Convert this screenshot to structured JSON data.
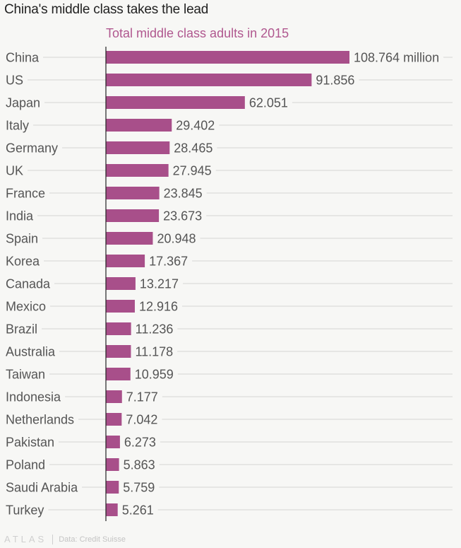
{
  "header": {
    "title": "China's middle class takes the lead",
    "subtitle": "Total middle class adults in 2015"
  },
  "footer": {
    "logo": "ATLAS",
    "source": "Data: Credit Suisse"
  },
  "colors": {
    "bar": "#a84f8a",
    "label": "#555555",
    "grid": "#d4d4d4",
    "axis": "#222222"
  },
  "chart_data": {
    "type": "bar",
    "orientation": "horizontal",
    "title": "China's middle class takes the lead",
    "subtitle": "Total middle class adults in 2015",
    "xlabel": "",
    "ylabel": "",
    "unit_suffix_first": " million",
    "xlim": [
      0,
      108.764
    ],
    "grid": true,
    "categories": [
      "China",
      "US",
      "Japan",
      "Italy",
      "Germany",
      "UK",
      "France",
      "India",
      "Spain",
      "Korea",
      "Canada",
      "Mexico",
      "Brazil",
      "Australia",
      "Taiwan",
      "Indonesia",
      "Netherlands",
      "Pakistan",
      "Poland",
      "Saudi Arabia",
      "Turkey"
    ],
    "values": [
      108.764,
      91.856,
      62.051,
      29.402,
      28.465,
      27.945,
      23.845,
      23.673,
      20.948,
      17.367,
      13.217,
      12.916,
      11.236,
      11.178,
      10.959,
      7.177,
      7.042,
      6.273,
      5.863,
      5.759,
      5.261
    ],
    "value_labels": [
      "108.764 million",
      "91.856",
      "62.051",
      "29.402",
      "28.465",
      "27.945",
      "23.845",
      "23.673",
      "20.948",
      "17.367",
      "13.217",
      "12.916",
      "11.236",
      "11.178",
      "10.959",
      "7.177",
      "7.042",
      "6.273",
      "5.863",
      "5.759",
      "5.261"
    ],
    "source": "Data: Credit Suisse"
  }
}
